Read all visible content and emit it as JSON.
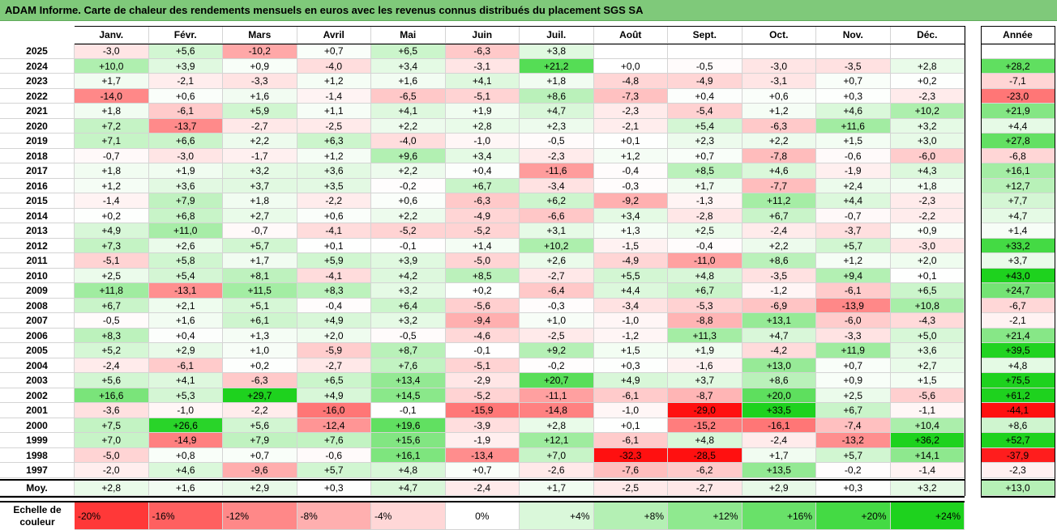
{
  "title": "ADAM Informe. Carte de chaleur des rendements mensuels en euros avec les revenus connus distribués du placement SGS SA",
  "months": [
    "Janv.",
    "Févr.",
    "Mars",
    "Avril",
    "Mai",
    "Juin",
    "Juil.",
    "Août",
    "Sept.",
    "Oct.",
    "Nov.",
    "Déc."
  ],
  "annual_header": "Année",
  "average_label": "Moy.",
  "scale_label": "Echelle de couleur",
  "colors": {
    "max_red": "#ff1010",
    "max_green": "#1ed21e",
    "neutral": "#ffffff",
    "title_bg": "#7fc97a"
  },
  "chart_data": {
    "type": "heatmap",
    "title": "ADAM Informe. Carte de chaleur des rendements mensuels en euros avec les revenus connus distribués du placement SGS SA",
    "x": [
      "Janv.",
      "Févr.",
      "Mars",
      "Avril",
      "Mai",
      "Juin",
      "Juil.",
      "Août",
      "Sept.",
      "Oct.",
      "Nov.",
      "Déc."
    ],
    "rows": [
      {
        "year": "2025",
        "values": [
          "-3,0",
          "+5,6",
          "-10,2",
          "+0,7",
          "+6,5",
          "-6,3",
          "+3,8",
          "",
          "",
          "",
          "",
          ""
        ],
        "annual": ""
      },
      {
        "year": "2024",
        "values": [
          "+10,0",
          "+3,9",
          "+0,9",
          "-4,0",
          "+3,4",
          "-3,1",
          "+21,2",
          "+0,0",
          "-0,5",
          "-3,0",
          "-3,5",
          "+2,8"
        ],
        "annual": "+28,2"
      },
      {
        "year": "2023",
        "values": [
          "+1,7",
          "-2,1",
          "-3,3",
          "+1,2",
          "+1,6",
          "+4,1",
          "+1,8",
          "-4,8",
          "-4,9",
          "-3,1",
          "+0,7",
          "+0,2"
        ],
        "annual": "-7,1"
      },
      {
        "year": "2022",
        "values": [
          "-14,0",
          "+0,6",
          "+1,6",
          "-1,4",
          "-6,5",
          "-5,1",
          "+8,6",
          "-7,3",
          "+0,4",
          "+0,6",
          "+0,3",
          "-2,3"
        ],
        "annual": "-23,0"
      },
      {
        "year": "2021",
        "values": [
          "+1,8",
          "-6,1",
          "+5,9",
          "+1,1",
          "+4,1",
          "+1,9",
          "+4,7",
          "-2,3",
          "-5,4",
          "+1,2",
          "+4,6",
          "+10,2"
        ],
        "annual": "+21,9"
      },
      {
        "year": "2020",
        "values": [
          "+7,2",
          "-13,7",
          "-2,7",
          "-2,5",
          "+2,2",
          "+2,8",
          "+2,3",
          "-2,1",
          "+5,4",
          "-6,3",
          "+11,6",
          "+3,2"
        ],
        "annual": "+4,4"
      },
      {
        "year": "2019",
        "values": [
          "+7,1",
          "+6,6",
          "+2,2",
          "+6,3",
          "-4,0",
          "-1,0",
          "-0,5",
          "+0,1",
          "+2,3",
          "+2,2",
          "+1,5",
          "+3,0"
        ],
        "annual": "+27,8"
      },
      {
        "year": "2018",
        "values": [
          "-0,7",
          "-3,0",
          "-1,7",
          "+1,2",
          "+9,6",
          "+3,4",
          "-2,3",
          "+1,2",
          "+0,7",
          "-7,8",
          "-0,6",
          "-6,0"
        ],
        "annual": "-6,8"
      },
      {
        "year": "2017",
        "values": [
          "+1,8",
          "+1,9",
          "+3,2",
          "+3,6",
          "+2,2",
          "+0,4",
          "-11,6",
          "-0,4",
          "+8,5",
          "+4,6",
          "-1,9",
          "+4,3"
        ],
        "annual": "+16,1"
      },
      {
        "year": "2016",
        "values": [
          "+1,2",
          "+3,6",
          "+3,7",
          "+3,5",
          "-0,2",
          "+6,7",
          "-3,4",
          "-0,3",
          "+1,7",
          "-7,7",
          "+2,4",
          "+1,8"
        ],
        "annual": "+12,7"
      },
      {
        "year": "2015",
        "values": [
          "-1,4",
          "+7,9",
          "+1,8",
          "-2,2",
          "+0,6",
          "-6,3",
          "+6,2",
          "-9,2",
          "-1,3",
          "+11,2",
          "+4,4",
          "-2,3"
        ],
        "annual": "+7,7"
      },
      {
        "year": "2014",
        "values": [
          "+0,2",
          "+6,8",
          "+2,7",
          "+0,6",
          "+2,2",
          "-4,9",
          "-6,6",
          "+3,4",
          "-2,8",
          "+6,7",
          "-0,7",
          "-2,2"
        ],
        "annual": "+4,7"
      },
      {
        "year": "2013",
        "values": [
          "+4,9",
          "+11,0",
          "-0,7",
          "-4,1",
          "-5,2",
          "-5,2",
          "+3,1",
          "+1,3",
          "+2,5",
          "-2,4",
          "-3,7",
          "+0,9"
        ],
        "annual": "+1,4"
      },
      {
        "year": "2012",
        "values": [
          "+7,3",
          "+2,6",
          "+5,7",
          "+0,1",
          "-0,1",
          "+1,4",
          "+10,2",
          "-1,5",
          "-0,4",
          "+2,2",
          "+5,7",
          "-3,0"
        ],
        "annual": "+33,2"
      },
      {
        "year": "2011",
        "values": [
          "-5,1",
          "+5,8",
          "+1,7",
          "+5,9",
          "+3,9",
          "-5,0",
          "+2,6",
          "-4,9",
          "-11,0",
          "+8,6",
          "+1,2",
          "+2,0"
        ],
        "annual": "+3,7"
      },
      {
        "year": "2010",
        "values": [
          "+2,5",
          "+5,4",
          "+8,1",
          "-4,1",
          "+4,2",
          "+8,5",
          "-2,7",
          "+5,5",
          "+4,8",
          "-3,5",
          "+9,4",
          "+0,1"
        ],
        "annual": "+43,0"
      },
      {
        "year": "2009",
        "values": [
          "+11,8",
          "-13,1",
          "+11,5",
          "+8,3",
          "+3,2",
          "+0,2",
          "-6,4",
          "+4,4",
          "+6,7",
          "-1,2",
          "-6,1",
          "+6,5"
        ],
        "annual": "+24,7"
      },
      {
        "year": "2008",
        "values": [
          "+6,7",
          "+2,1",
          "+5,1",
          "-0,4",
          "+6,4",
          "-5,6",
          "-0,3",
          "-3,4",
          "-5,3",
          "-6,9",
          "-13,9",
          "+10,8"
        ],
        "annual": "-6,7"
      },
      {
        "year": "2007",
        "values": [
          "-0,5",
          "+1,6",
          "+6,1",
          "+4,9",
          "+3,2",
          "-9,4",
          "+1,0",
          "-1,0",
          "-8,8",
          "+13,1",
          "-6,0",
          "-4,3"
        ],
        "annual": "-2,1"
      },
      {
        "year": "2006",
        "values": [
          "+8,3",
          "+0,4",
          "+1,3",
          "+2,0",
          "-0,5",
          "-4,6",
          "-2,5",
          "-1,2",
          "+11,3",
          "+4,7",
          "-3,3",
          "+5,0"
        ],
        "annual": "+21,4"
      },
      {
        "year": "2005",
        "values": [
          "+5,2",
          "+2,9",
          "+1,0",
          "-5,9",
          "+8,7",
          "-0,1",
          "+9,2",
          "+1,5",
          "+1,9",
          "-4,2",
          "+11,9",
          "+3,6"
        ],
        "annual": "+39,5"
      },
      {
        "year": "2004",
        "values": [
          "-2,4",
          "-6,1",
          "+0,2",
          "-2,7",
          "+7,6",
          "-5,1",
          "-0,2",
          "+0,3",
          "-1,6",
          "+13,0",
          "+0,7",
          "+2,7"
        ],
        "annual": "+4,8"
      },
      {
        "year": "2003",
        "values": [
          "+5,6",
          "+4,1",
          "-6,3",
          "+6,5",
          "+13,4",
          "-2,9",
          "+20,7",
          "+4,9",
          "+3,7",
          "+8,6",
          "+0,9",
          "+1,5"
        ],
        "annual": "+75,5"
      },
      {
        "year": "2002",
        "values": [
          "+16,6",
          "+5,3",
          "+29,7",
          "+4,9",
          "+14,5",
          "-5,2",
          "-11,1",
          "-6,1",
          "-8,7",
          "+20,0",
          "+2,5",
          "-5,6"
        ],
        "annual": "+61,2"
      },
      {
        "year": "2001",
        "values": [
          "-3,6",
          "-1,0",
          "-2,2",
          "-16,0",
          "-0,1",
          "-15,9",
          "-14,8",
          "-1,0",
          "-29,0",
          "+33,5",
          "+6,7",
          "-1,1"
        ],
        "annual": "-44,1"
      },
      {
        "year": "2000",
        "values": [
          "+7,5",
          "+26,6",
          "+5,6",
          "-12,4",
          "+19,6",
          "-3,9",
          "+2,8",
          "+0,1",
          "-15,2",
          "-16,1",
          "-7,4",
          "+10,4"
        ],
        "annual": "+8,6"
      },
      {
        "year": "1999",
        "values": [
          "+7,0",
          "-14,9",
          "+7,9",
          "+7,6",
          "+15,6",
          "-1,9",
          "+12,1",
          "-6,1",
          "+4,8",
          "-2,4",
          "-13,2",
          "+36,2"
        ],
        "annual": "+52,7"
      },
      {
        "year": "1998",
        "values": [
          "-5,0",
          "+0,8",
          "+0,7",
          "-0,6",
          "+16,1",
          "-13,4",
          "+7,0",
          "-32,3",
          "-28,5",
          "+1,7",
          "+5,7",
          "+14,1"
        ],
        "annual": "-37,9"
      },
      {
        "year": "1997",
        "values": [
          "-2,0",
          "+4,6",
          "-9,6",
          "+5,7",
          "+4,8",
          "+0,7",
          "-2,6",
          "-7,6",
          "-6,2",
          "+13,5",
          "-0,2",
          "-1,4"
        ],
        "annual": "-2,3"
      }
    ],
    "average": {
      "values": [
        "+2,8",
        "+1,6",
        "+2,9",
        "+0,3",
        "+4,7",
        "-2,4",
        "+1,7",
        "-2,5",
        "-2,7",
        "+2,9",
        "+0,3",
        "+3,2"
      ],
      "annual": "+13,0"
    },
    "scale": [
      "-20%",
      "-16%",
      "-12%",
      "-8%",
      "-4%",
      "0%",
      "+4%",
      "+8%",
      "+12%",
      "+16%",
      "+20%",
      "+24%"
    ]
  }
}
